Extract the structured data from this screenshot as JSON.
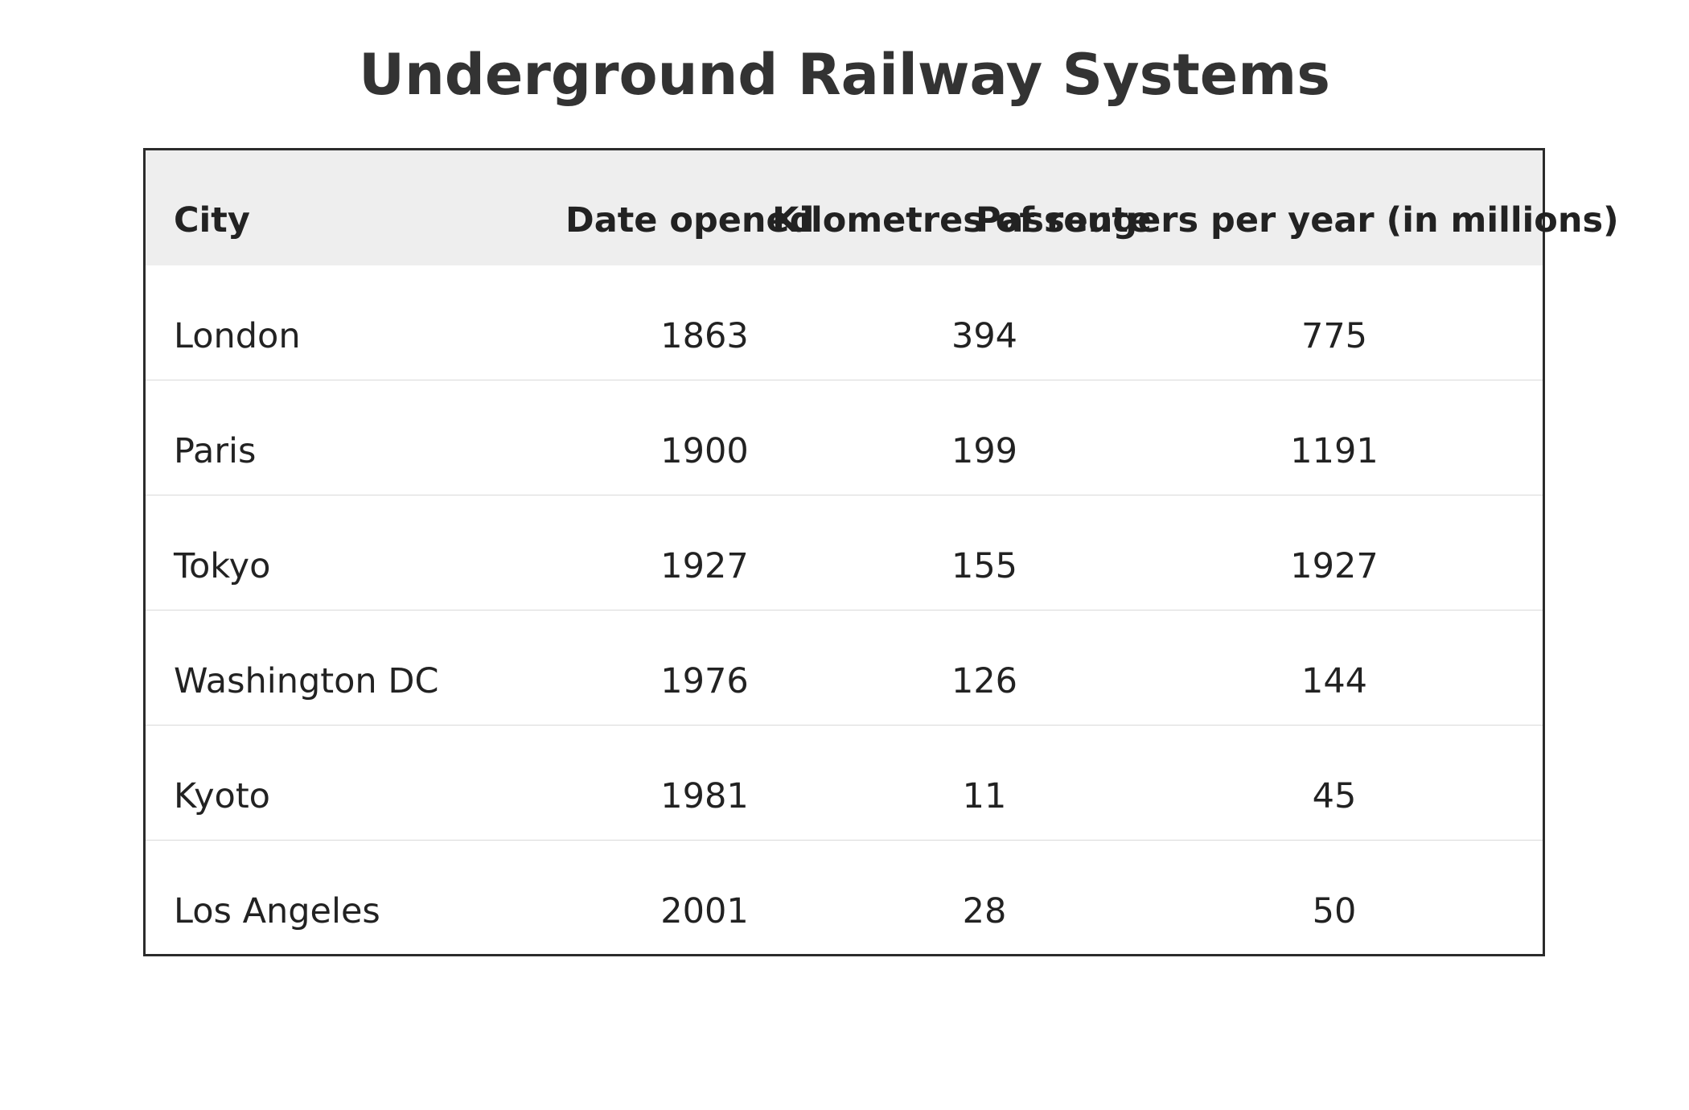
{
  "chart_data": {
    "type": "table",
    "title": "Underground Railway Systems",
    "columns": [
      "City",
      "Date opened",
      "Kilometres of route",
      "Passengers per year (in millions)"
    ],
    "rows": [
      [
        "London",
        "1863",
        "394",
        "775"
      ],
      [
        "Paris",
        "1900",
        "199",
        "1191"
      ],
      [
        "Tokyo",
        "1927",
        "155",
        "1927"
      ],
      [
        "Washington DC",
        "1976",
        "126",
        "144"
      ],
      [
        "Kyoto",
        "1981",
        "11",
        "45"
      ],
      [
        "Los Angeles",
        "2001",
        "28",
        "50"
      ]
    ]
  },
  "colors": {
    "title": "#333333",
    "text": "#222222",
    "header_bg": "#eeeeee",
    "frame": "#2b2b2b",
    "row_divider": "#d9d9d9"
  }
}
